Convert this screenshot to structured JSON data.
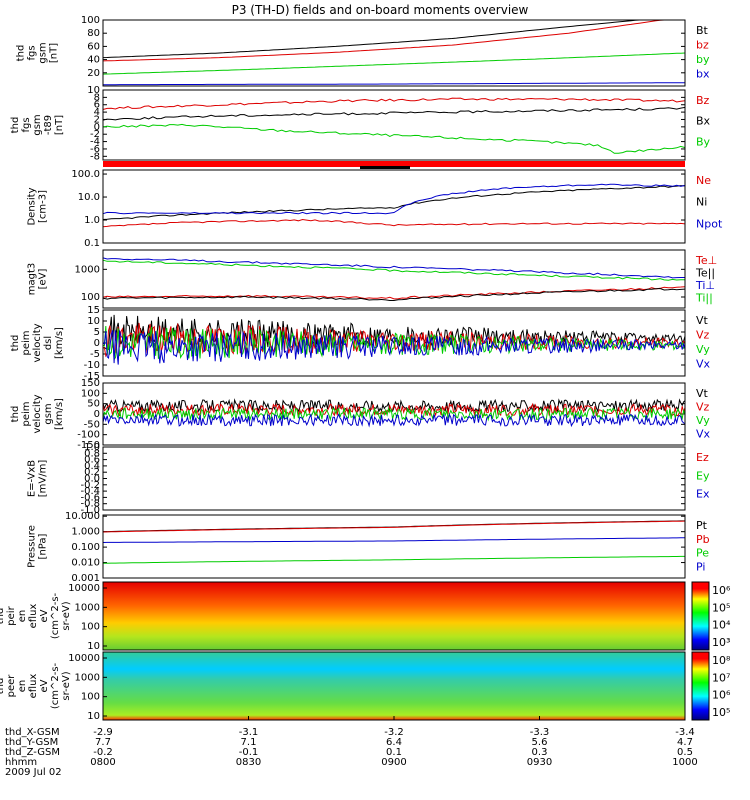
{
  "title": "P3 (TH-D) fields and on-board moments overview",
  "colors": {
    "black": "#000000",
    "red": "#dd0000",
    "green": "#00cc00",
    "blue": "#0000cc"
  },
  "chart_data": [
    {
      "type": "line",
      "ylabel": [
        "thd",
        "fgs",
        "gsm",
        "[nT]"
      ],
      "yticks": [
        "20",
        "40",
        "60",
        "80",
        "100"
      ],
      "ylim": [
        0,
        100
      ],
      "series": [
        {
          "name": "Bt",
          "color": "black",
          "x": [
            0,
            0.2,
            0.4,
            0.6,
            0.8,
            0.92,
            1
          ],
          "y": [
            43,
            50,
            60,
            72,
            90,
            100,
            100
          ]
        },
        {
          "name": "bz",
          "color": "red",
          "x": [
            0,
            0.2,
            0.4,
            0.6,
            0.8,
            0.96,
            1
          ],
          "y": [
            38,
            43,
            51,
            62,
            80,
            100,
            100
          ]
        },
        {
          "name": "by",
          "color": "green",
          "x": [
            0,
            0.25,
            0.5,
            0.75,
            1
          ],
          "y": [
            18,
            25,
            33,
            41,
            50
          ]
        },
        {
          "name": "bx",
          "color": "blue",
          "x": [
            0,
            0.5,
            1
          ],
          "y": [
            2,
            3,
            5
          ]
        }
      ]
    },
    {
      "type": "line",
      "ylabel": [
        "thd",
        "fgs",
        "gsm",
        "-t89",
        "[nT]"
      ],
      "yticks": [
        "-8",
        "-6",
        "-4",
        "-2",
        "0",
        "2",
        "4",
        "6",
        "8",
        "10"
      ],
      "ylim": [
        -9,
        10
      ],
      "series": [
        {
          "name": "Bz",
          "color": "red",
          "x": [
            0,
            0.2,
            0.4,
            0.6,
            0.8,
            1
          ],
          "y": [
            5,
            6,
            7,
            7.5,
            7.5,
            7
          ]
        },
        {
          "name": "Bx",
          "color": "black",
          "x": [
            0,
            0.2,
            0.4,
            0.6,
            0.8,
            1
          ],
          "y": [
            2,
            3,
            3.5,
            4,
            4.5,
            5
          ]
        },
        {
          "name": "By",
          "color": "green",
          "x": [
            0,
            0.15,
            0.3,
            0.45,
            0.6,
            0.75,
            0.85,
            0.88,
            1
          ],
          "y": [
            0,
            0.5,
            -1,
            -2,
            -3,
            -4,
            -5,
            -7,
            -5.5
          ]
        }
      ]
    },
    {
      "type": "line",
      "ylabel": [
        "Density",
        "[cm-3]"
      ],
      "yticks": [
        "0.1",
        "1.0",
        "10.0",
        "100.0"
      ],
      "ylim": [
        0.1,
        150
      ],
      "log": true,
      "series": [
        {
          "name": "Ne",
          "color": "red",
          "x": [
            0,
            0.15,
            0.35,
            0.5,
            0.7,
            1
          ],
          "y": [
            0.5,
            0.8,
            1.0,
            0.6,
            0.7,
            0.7
          ]
        },
        {
          "name": "Ni",
          "color": "black",
          "x": [
            0,
            0.5,
            1
          ],
          "y": [
            1.0,
            3.5,
            30
          ]
        },
        {
          "name": "Npot",
          "color": "blue",
          "x": [
            0,
            0.5,
            0.55,
            0.7,
            0.85,
            1
          ],
          "y": [
            2,
            2,
            8,
            25,
            35,
            30
          ]
        }
      ]
    },
    {
      "type": "line",
      "ylabel": [
        "magt3",
        "[eV]"
      ],
      "yticks": [
        "100",
        "1000"
      ],
      "ylim": [
        40,
        5000
      ],
      "log": true,
      "series": [
        {
          "name": "Te⊥",
          "color": "red",
          "x": [
            0,
            0.25,
            0.5,
            0.75,
            1
          ],
          "y": [
            100,
            110,
            90,
            150,
            220
          ]
        },
        {
          "name": "Te||",
          "color": "black",
          "x": [
            0,
            0.25,
            0.5,
            0.75,
            1
          ],
          "y": [
            90,
            100,
            80,
            140,
            200
          ]
        },
        {
          "name": "Ti⊥",
          "color": "blue",
          "x": [
            0,
            0.25,
            0.5,
            0.75,
            1
          ],
          "y": [
            2500,
            1800,
            1200,
            800,
            500
          ]
        },
        {
          "name": "Ti||",
          "color": "green",
          "x": [
            0,
            0.25,
            0.5,
            0.75,
            1
          ],
          "y": [
            2000,
            1400,
            900,
            600,
            400
          ]
        }
      ]
    },
    {
      "type": "line",
      "ylabel": [
        "thd",
        "peim",
        "velocity",
        "dsl",
        "[km/s]"
      ],
      "yticks": [
        "-15",
        "-10",
        "-5",
        "0",
        "5",
        "10",
        "15"
      ],
      "ylim": [
        -15,
        15
      ],
      "series": [
        {
          "name": "Vt",
          "color": "black",
          "x": [
            0,
            1
          ],
          "y": [
            5,
            2
          ]
        },
        {
          "name": "Vz",
          "color": "red",
          "x": [
            0,
            1
          ],
          "y": [
            2,
            0
          ]
        },
        {
          "name": "Vy",
          "color": "green",
          "x": [
            0,
            1
          ],
          "y": [
            0,
            -1
          ]
        },
        {
          "name": "Vx",
          "color": "blue",
          "x": [
            0,
            1
          ],
          "y": [
            -2,
            -1
          ]
        }
      ]
    },
    {
      "type": "line",
      "ylabel": [
        "thd",
        "peim",
        "velocity",
        "gsm",
        "[km/s]"
      ],
      "yticks": [
        "-150",
        "-100",
        "-50",
        "0",
        "50",
        "100",
        "150"
      ],
      "ylim": [
        -150,
        150
      ],
      "series": [
        {
          "name": "Vt",
          "color": "black",
          "x": [
            0,
            1
          ],
          "y": [
            40,
            40
          ]
        },
        {
          "name": "Vz",
          "color": "red",
          "x": [
            0,
            1
          ],
          "y": [
            20,
            20
          ]
        },
        {
          "name": "Vy",
          "color": "green",
          "x": [
            0,
            1
          ],
          "y": [
            0,
            0
          ]
        },
        {
          "name": "Vx",
          "color": "blue",
          "x": [
            0,
            1
          ],
          "y": [
            -30,
            -30
          ]
        }
      ]
    },
    {
      "type": "line",
      "ylabel": [
        "E=-VxB",
        "[mV/m]"
      ],
      "yticks": [
        "-1.0",
        "-0.8",
        "-0.6",
        "-0.4",
        "-0.2",
        "0.0",
        "0.2",
        "0.4",
        "0.6",
        "0.8",
        "1.0"
      ],
      "ylim": [
        -1,
        1
      ],
      "series": [
        {
          "name": "Ez",
          "color": "red",
          "x": [],
          "y": []
        },
        {
          "name": "Ey",
          "color": "green",
          "x": [],
          "y": []
        },
        {
          "name": "Ex",
          "color": "blue",
          "x": [],
          "y": []
        }
      ]
    },
    {
      "type": "line",
      "ylabel": [
        "Pressure",
        "[nPa]"
      ],
      "yticks": [
        "0.001",
        "0.010",
        "0.100",
        "1.000",
        "10.000"
      ],
      "ylim": [
        0.001,
        12
      ],
      "log": true,
      "series": [
        {
          "name": "Pt",
          "color": "black",
          "x": [
            0,
            0.5,
            1
          ],
          "y": [
            1.0,
            2.0,
            5.0
          ]
        },
        {
          "name": "Pb",
          "color": "red",
          "x": [
            0,
            0.5,
            1
          ],
          "y": [
            0.95,
            1.9,
            4.8
          ]
        },
        {
          "name": "Pe",
          "color": "green",
          "x": [
            0,
            0.5,
            1
          ],
          "y": [
            0.009,
            0.015,
            0.025
          ]
        },
        {
          "name": "Pi",
          "color": "blue",
          "x": [
            0,
            0.5,
            1
          ],
          "y": [
            0.2,
            0.25,
            0.4
          ]
        }
      ]
    },
    {
      "type": "heatmap",
      "ylabel": [
        "thd",
        "peir",
        "en",
        "eflux",
        "eV",
        "(cm^2-s-",
        "sr-eV)"
      ],
      "yticks": [
        "10",
        "100",
        "1000",
        "10000"
      ],
      "colorbar": [
        "10³",
        "10⁴",
        "10⁵",
        "10⁶"
      ]
    },
    {
      "type": "heatmap",
      "ylabel": [
        "thd",
        "peer",
        "en",
        "eflux",
        "eV",
        "(cm^2-s-",
        "sr-eV)"
      ],
      "yticks": [
        "10",
        "100",
        "1000",
        "10000"
      ],
      "colorbar": [
        "10⁵",
        "10⁶",
        "10⁷",
        "10⁸"
      ]
    }
  ],
  "xaxis": {
    "rows": [
      {
        "label": "thd_X-GSM",
        "values": [
          "-2.9",
          "-3.1",
          "-3.2",
          "-3.3",
          "-3.4"
        ]
      },
      {
        "label": "thd_Y-GSM",
        "values": [
          "7.7",
          "7.1",
          "6.4",
          "5.6",
          "4.7"
        ]
      },
      {
        "label": "thd_Z-GSM",
        "values": [
          "-0.2",
          "-0.1",
          "0.1",
          "0.3",
          "0.5"
        ]
      },
      {
        "label": "hhmm",
        "values": [
          "0800",
          "0830",
          "0900",
          "0930",
          "1000"
        ]
      }
    ],
    "date": "2009 Jul 02"
  }
}
